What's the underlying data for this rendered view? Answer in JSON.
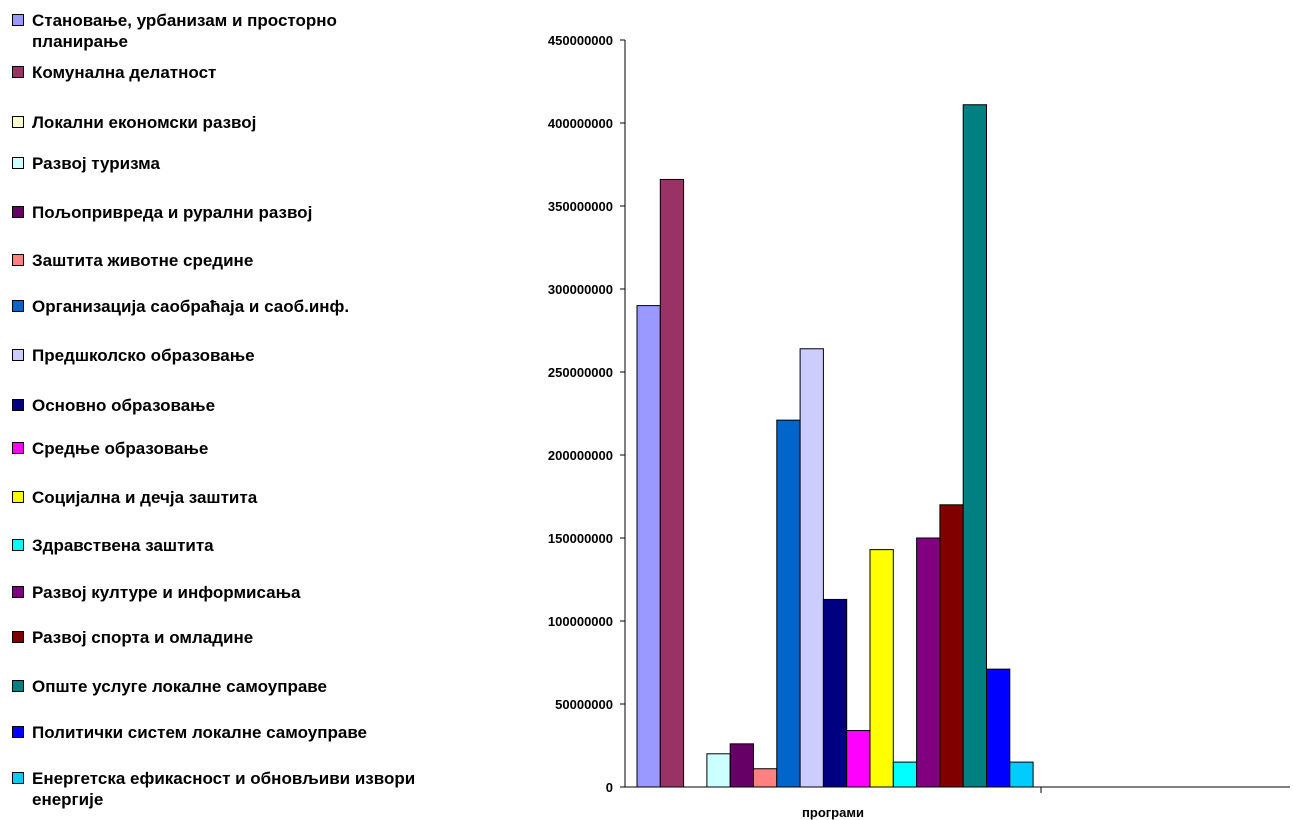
{
  "chart_data": {
    "type": "bar",
    "categories": [
      "програми"
    ],
    "xlabel": "програми",
    "ylabel": "",
    "ylim": [
      0,
      450000000
    ],
    "yticks": [
      "0",
      "50000000",
      "100000000",
      "150000000",
      "200000000",
      "250000000",
      "300000000",
      "350000000",
      "400000000",
      "450000000"
    ],
    "legend_position": "left",
    "grid": false,
    "series": [
      {
        "name": "Становање, урбанизам и просторно планирање",
        "color": "#9999ff",
        "values": [
          290000000
        ]
      },
      {
        "name": "Комунална делатност",
        "color": "#993366",
        "values": [
          366000000
        ]
      },
      {
        "name": "Локални економски развој",
        "color": "#ffffcc",
        "values": [
          0
        ]
      },
      {
        "name": "Развој туризма",
        "color": "#ccffff",
        "values": [
          20000000
        ]
      },
      {
        "name": "Пољопривреда и рурални развој",
        "color": "#660066",
        "values": [
          26000000
        ]
      },
      {
        "name": "Заштита животне средине",
        "color": "#ff8080",
        "values": [
          11000000
        ]
      },
      {
        "name": "Организација саобраћаја и саоб.инф.",
        "color": "#0066cc",
        "values": [
          221000000
        ]
      },
      {
        "name": "Предшколско образовање",
        "color": "#ccccff",
        "values": [
          264000000
        ]
      },
      {
        "name": "Основно образовање",
        "color": "#000080",
        "values": [
          113000000
        ]
      },
      {
        "name": "Средње образовање",
        "color": "#ff00ff",
        "values": [
          34000000
        ]
      },
      {
        "name": "Социјална и дечја заштита",
        "color": "#ffff00",
        "values": [
          143000000
        ]
      },
      {
        "name": "Здравствена заштита",
        "color": "#00ffff",
        "values": [
          15000000
        ]
      },
      {
        "name": "Развој културе и информисања",
        "color": "#800080",
        "values": [
          150000000
        ]
      },
      {
        "name": "Развој спорта и омладине",
        "color": "#800000",
        "values": [
          170000000
        ]
      },
      {
        "name": "Опште услуге локалне самоуправе",
        "color": "#008080",
        "values": [
          411000000
        ]
      },
      {
        "name": "Политички систем локалне самоуправе",
        "color": "#0000ff",
        "values": [
          71000000
        ]
      },
      {
        "name": "Енергетска ефикасност и обновљиви извори енергије",
        "color": "#00ccff",
        "values": [
          15000000
        ]
      }
    ]
  }
}
